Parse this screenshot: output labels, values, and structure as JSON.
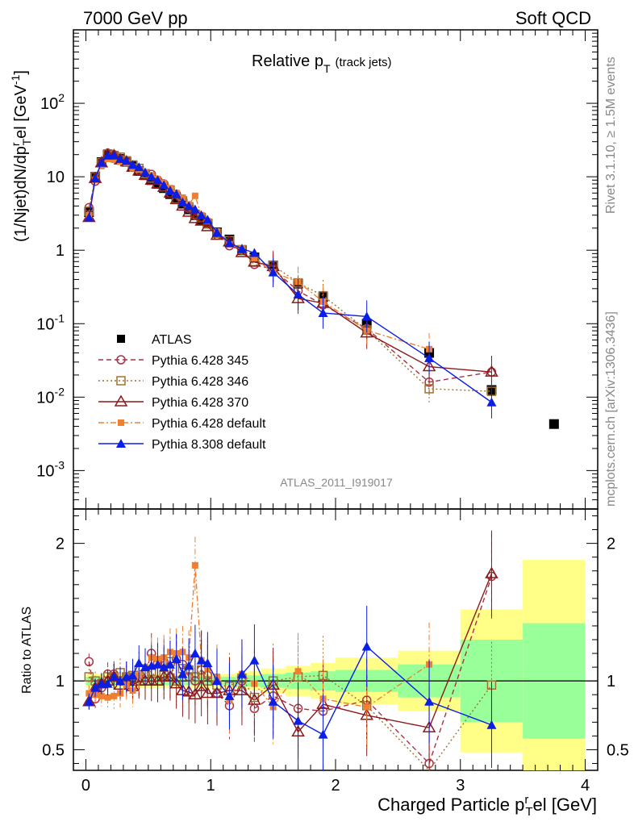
{
  "header": {
    "left": "7000 GeV pp",
    "right": "Soft QCD"
  },
  "side_labels": {
    "rivet": "Rivet 3.1.10, ≥ 1.5M events",
    "mcplots": "mcplots.cern.ch [arXiv:1306.3436]"
  },
  "colors": {
    "atlas": "#000000",
    "p345": "#a83246",
    "p346": "#a07030",
    "p370": "#8b1a1a",
    "pdefault": "#f08030",
    "p8": "#0a1ee6",
    "band_inner": "#99ff99",
    "band_outer": "#ffff88"
  },
  "chart_data": [
    {
      "type": "scatter",
      "title": "Relative p_T (track jets)",
      "title_main": "Relative p",
      "title_sub": "T",
      "title_extra": "(track jets)",
      "watermark": "ATLAS_2011_I919017",
      "ylabel": "(1/Njet)dN/dp^rel_T [GeV^-1]",
      "ylabel_prefix": "(1/Njet)dN/dp",
      "ylabel_sup": "r",
      "ylabel_sub": "T",
      "ylabel_mid": "el [GeV",
      "ylabel_sup2": "-1",
      "ylabel_end": "]",
      "yscale": "log",
      "ylim": [
        0.0003,
        1000
      ],
      "xlim": [
        -0.1,
        4.1
      ],
      "yticks": [
        {
          "base": "10",
          "exp": "-3",
          "v": 0.001
        },
        {
          "base": "10",
          "exp": "-2",
          "v": 0.01
        },
        {
          "base": "10",
          "exp": "-1",
          "v": 0.1
        },
        {
          "base": "1",
          "exp": "",
          "v": 1
        },
        {
          "base": "10",
          "exp": "",
          "v": 10
        },
        {
          "base": "10",
          "exp": "2",
          "v": 100
        }
      ],
      "legend_position": "bottom-left",
      "x": [
        0.025,
        0.075,
        0.125,
        0.175,
        0.225,
        0.275,
        0.325,
        0.375,
        0.425,
        0.475,
        0.525,
        0.575,
        0.625,
        0.675,
        0.725,
        0.775,
        0.825,
        0.875,
        0.925,
        0.975,
        1.05,
        1.15,
        1.25,
        1.35,
        1.5,
        1.7,
        1.9,
        2.25,
        2.75,
        3.25,
        3.75
      ],
      "series": [
        {
          "name": "ATLAS",
          "key": "atlas",
          "marker": "square-filled",
          "values": [
            3.3,
            10.0,
            15.8,
            20.0,
            19.0,
            17.5,
            16.0,
            14.0,
            12.0,
            10.5,
            9.0,
            8.0,
            7.0,
            5.8,
            5.0,
            4.3,
            3.6,
            3.0,
            2.6,
            2.3,
            1.75,
            1.4,
            1.0,
            0.8,
            0.62,
            0.35,
            0.23,
            0.1,
            0.04,
            0.0125,
            0.0043
          ]
        },
        {
          "name": "Pythia 6.428 345",
          "key": "p345",
          "marker": "circle-open",
          "dash": "6,4",
          "values": [
            3.8,
            8.7,
            15.0,
            21.0,
            20.0,
            17.5,
            16.5,
            13.5,
            12.2,
            11.0,
            10.8,
            9.0,
            8.0,
            6.0,
            5.8,
            4.8,
            3.7,
            3.0,
            2.8,
            2.4,
            1.6,
            1.15,
            1.0,
            0.64,
            0.55,
            0.28,
            0.18,
            0.086,
            0.016,
            0.022
          ]
        },
        {
          "name": "Pythia 6.428 346",
          "key": "p346",
          "marker": "square-open",
          "dash": "2,3",
          "values": [
            3.4,
            10.0,
            15.5,
            20.5,
            19.5,
            18.5,
            16.5,
            14.5,
            13.0,
            11.0,
            9.6,
            8.0,
            7.3,
            6.6,
            5.0,
            4.7,
            3.9,
            3.1,
            2.8,
            2.3,
            1.7,
            1.35,
            1.02,
            0.7,
            0.62,
            0.36,
            0.24,
            0.082,
            0.013,
            0.012
          ]
        },
        {
          "name": "Pythia 6.428 370",
          "key": "p370",
          "marker": "triangle-open",
          "dash": "",
          "values": [
            2.8,
            9.5,
            15.5,
            20.0,
            19.5,
            17.0,
            16.0,
            13.5,
            12.0,
            10.5,
            9.0,
            8.0,
            7.2,
            6.0,
            4.9,
            4.0,
            3.3,
            2.7,
            2.5,
            2.1,
            1.6,
            1.3,
            0.93,
            0.69,
            0.6,
            0.22,
            0.19,
            0.075,
            0.026,
            0.022
          ]
        },
        {
          "name": "Pythia 6.428 default",
          "key": "pdefault",
          "marker": "square-filled-small",
          "dash": "7,3,2,3",
          "values": [
            3.0,
            9.0,
            14.0,
            17.5,
            17.0,
            16.0,
            15.5,
            13.0,
            12.5,
            11.5,
            10.5,
            9.3,
            8.2,
            7.0,
            6.0,
            5.2,
            4.2,
            5.5,
            3.0,
            2.5,
            1.8,
            1.2,
            1.05,
            0.78,
            0.5,
            0.37,
            0.2,
            0.081,
            0.045
          ]
        },
        {
          "name": "Pythia 8.308 default",
          "key": "p8",
          "marker": "triangle-filled",
          "dash": "",
          "values": [
            2.8,
            9.5,
            15.5,
            19.5,
            19.5,
            17.5,
            16.5,
            14.5,
            13.5,
            11.5,
            10.0,
            9.0,
            7.7,
            6.5,
            5.8,
            4.5,
            4.0,
            3.6,
            3.0,
            2.6,
            1.75,
            1.25,
            1.05,
            0.92,
            0.5,
            0.25,
            0.14,
            0.125,
            0.034,
            0.0085
          ]
        }
      ]
    },
    {
      "type": "scatter",
      "xlabel": "Charged Particle p^rel_T [GeV]",
      "xlabel_main": "Charged Particle p",
      "xlabel_sup": "r",
      "xlabel_sub": "T",
      "xlabel_end": "el [GeV]",
      "ylabel": "Ratio to ATLAS",
      "xlim": [
        -0.1,
        4.1
      ],
      "ylim": [
        0.35,
        2.25
      ],
      "xticks": [
        "0",
        "1",
        "2",
        "3",
        "4"
      ],
      "yticks": [
        "0.5",
        "1",
        "2"
      ],
      "yticks_values": [
        0.5,
        1,
        2
      ],
      "reference_line": 1,
      "uncertainty_bands": {
        "edges": [
          0,
          0.05,
          0.1,
          0.15,
          0.2,
          0.25,
          0.3,
          0.35,
          0.4,
          0.45,
          0.5,
          0.55,
          0.6,
          0.65,
          0.7,
          0.75,
          0.8,
          0.85,
          0.9,
          0.95,
          1.0,
          1.1,
          1.2,
          1.3,
          1.4,
          1.6,
          1.8,
          2.0,
          2.5,
          3.0,
          3.5,
          4.0
        ],
        "inner_rel": [
          0.03,
          0.03,
          0.03,
          0.03,
          0.03,
          0.03,
          0.03,
          0.03,
          0.03,
          0.03,
          0.03,
          0.03,
          0.03,
          0.03,
          0.03,
          0.03,
          0.03,
          0.03,
          0.03,
          0.03,
          0.03,
          0.03,
          0.04,
          0.04,
          0.05,
          0.06,
          0.07,
          0.08,
          0.12,
          0.3,
          0.42
        ],
        "outer_rel": [
          0.05,
          0.05,
          0.05,
          0.05,
          0.05,
          0.05,
          0.05,
          0.05,
          0.05,
          0.05,
          0.05,
          0.05,
          0.05,
          0.05,
          0.05,
          0.05,
          0.05,
          0.05,
          0.05,
          0.05,
          0.05,
          0.05,
          0.06,
          0.07,
          0.09,
          0.11,
          0.13,
          0.17,
          0.22,
          0.52,
          0.88
        ]
      },
      "ratios": {
        "p345": [
          1.14,
          0.87,
          0.95,
          1.05,
          1.05,
          1.0,
          1.03,
          0.96,
          1.02,
          1.05,
          1.2,
          1.13,
          1.14,
          1.03,
          1.16,
          1.12,
          1.03,
          1.0,
          1.08,
          1.04,
          0.91,
          0.82,
          1.0,
          0.8,
          0.89,
          0.8,
          0.78,
          0.86,
          0.4,
          1.76
        ],
        "p346": [
          1.03,
          1.0,
          0.98,
          1.03,
          1.03,
          1.06,
          1.03,
          1.04,
          1.08,
          1.05,
          1.07,
          1.0,
          1.04,
          1.14,
          1.0,
          1.09,
          1.08,
          1.03,
          1.08,
          1.0,
          0.97,
          0.96,
          1.02,
          0.88,
          1.0,
          1.03,
          1.04,
          0.82,
          0.32,
          0.97
        ],
        "p370": [
          0.85,
          0.95,
          0.98,
          1.0,
          1.03,
          0.97,
          1.0,
          0.96,
          1.0,
          1.0,
          1.0,
          1.0,
          1.03,
          1.03,
          0.98,
          0.93,
          0.92,
          0.9,
          0.96,
          0.91,
          0.91,
          0.93,
          0.93,
          0.86,
          0.97,
          0.63,
          0.83,
          0.75,
          0.66,
          1.78
        ],
        "pdefault": [
          0.91,
          0.9,
          0.89,
          0.88,
          0.89,
          0.91,
          0.97,
          0.93,
          1.04,
          1.1,
          1.17,
          1.16,
          1.17,
          1.21,
          1.2,
          1.21,
          1.17,
          1.84,
          1.15,
          1.09,
          1.03,
          0.86,
          1.05,
          0.98,
          0.81,
          1.07,
          0.87,
          0.81,
          1.12
        ],
        "p8": [
          0.85,
          0.95,
          0.98,
          0.98,
          1.03,
          1.0,
          1.03,
          1.04,
          1.13,
          1.1,
          1.11,
          1.12,
          1.1,
          1.12,
          1.16,
          1.05,
          1.11,
          1.2,
          1.15,
          1.13,
          1.0,
          0.89,
          1.05,
          1.15,
          0.85,
          0.71,
          0.61,
          1.25,
          0.85,
          0.68
        ]
      }
    }
  ]
}
